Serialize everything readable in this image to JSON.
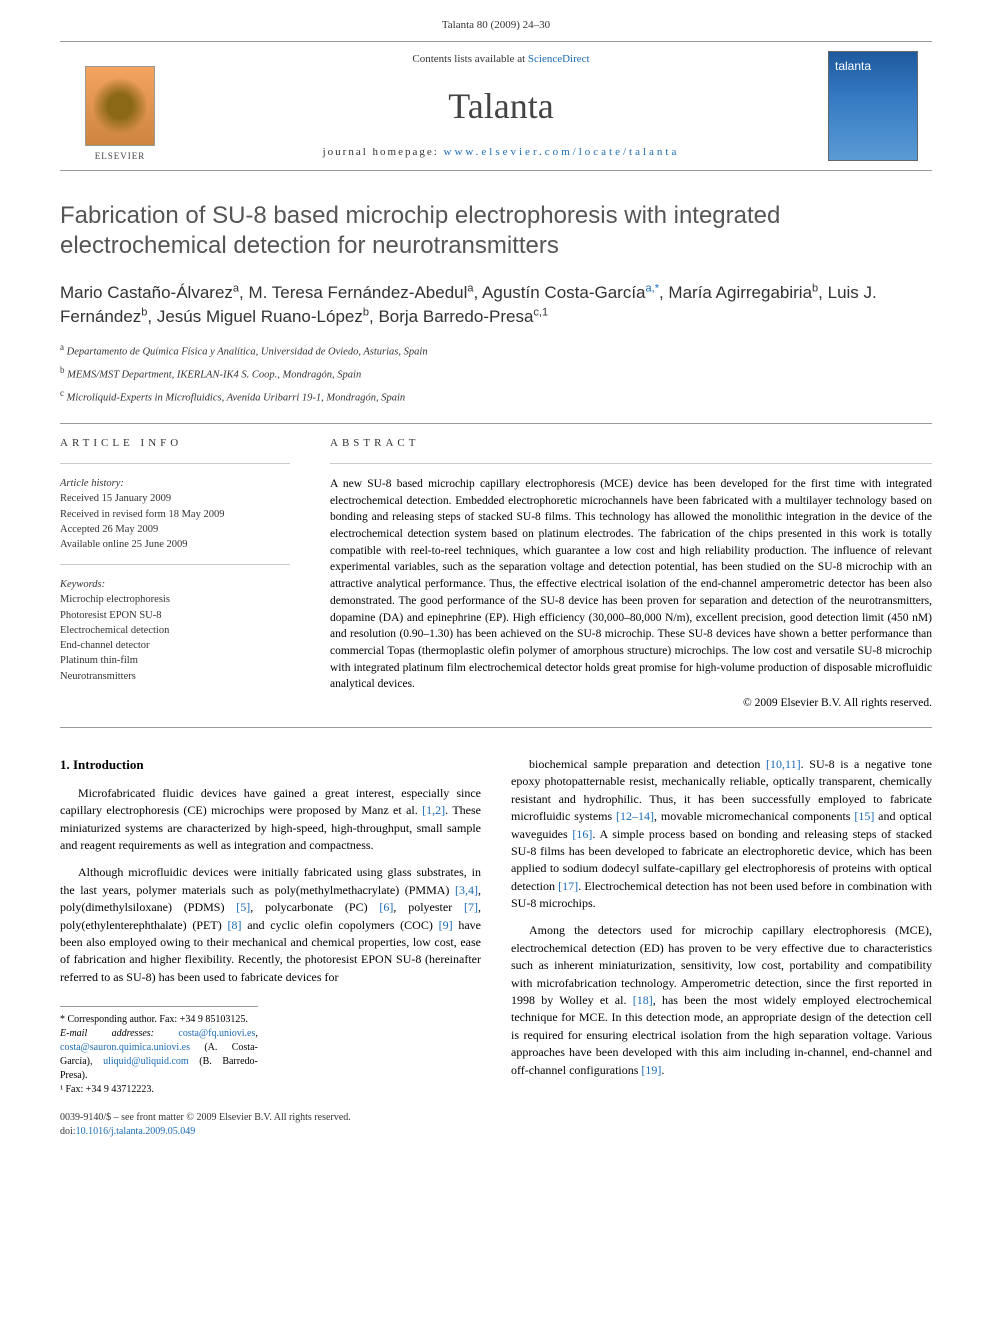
{
  "page_header": "Talanta 80 (2009) 24–30",
  "banner": {
    "contents_prefix": "Contents lists available at ",
    "contents_link": "ScienceDirect",
    "journal_name": "Talanta",
    "homepage_prefix": "journal homepage: ",
    "homepage_link": "www.elsevier.com/locate/talanta",
    "publisher": "ELSEVIER",
    "cover_label": "talanta"
  },
  "article": {
    "title": "Fabrication of SU-8 based microchip electrophoresis with integrated electrochemical detection for neurotransmitters",
    "authors_html": "Mario Castaño-Álvarez<sup class='sup-plain'>a</sup>, M. Teresa Fernández-Abedul<sup class='sup-plain'>a</sup>, Agustín Costa-García<sup>a,</sup><sup>*</sup>, María Agirregabiria<sup class='sup-plain'>b</sup>, Luis J. Fernández<sup class='sup-plain'>b</sup>, Jesús Miguel Ruano-López<sup class='sup-plain'>b</sup>, Borja Barredo-Presa<sup class='sup-plain'>c,1</sup>",
    "affiliations": [
      {
        "sup": "a",
        "text": "Departamento de Química Física y Analítica, Universidad de Oviedo, Asturias, Spain"
      },
      {
        "sup": "b",
        "text": "MEMS/MST Department, IKERLAN-IK4 S. Coop., Mondragón, Spain"
      },
      {
        "sup": "c",
        "text": "Microliquid-Experts in Microfluidics, Avenida Uribarri 19-1, Mondragón, Spain"
      }
    ]
  },
  "info": {
    "label": "article info",
    "history_head": "Article history:",
    "history": [
      "Received 15 January 2009",
      "Received in revised form 18 May 2009",
      "Accepted 26 May 2009",
      "Available online 25 June 2009"
    ],
    "keywords_head": "Keywords:",
    "keywords": [
      "Microchip electrophoresis",
      "Photoresist EPON SU-8",
      "Electrochemical detection",
      "End-channel detector",
      "Platinum thin-film",
      "Neurotransmitters"
    ]
  },
  "abstract": {
    "label": "abstract",
    "text": "A new SU-8 based microchip capillary electrophoresis (MCE) device has been developed for the first time with integrated electrochemical detection. Embedded electrophoretic microchannels have been fabricated with a multilayer technology based on bonding and releasing steps of stacked SU-8 films. This technology has allowed the monolithic integration in the device of the electrochemical detection system based on platinum electrodes. The fabrication of the chips presented in this work is totally compatible with reel-to-reel techniques, which guarantee a low cost and high reliability production. The influence of relevant experimental variables, such as the separation voltage and detection potential, has been studied on the SU-8 microchip with an attractive analytical performance. Thus, the effective electrical isolation of the end-channel amperometric detector has been also demonstrated. The good performance of the SU-8 device has been proven for separation and detection of the neurotransmitters, dopamine (DA) and epinephrine (EP). High efficiency (30,000–80,000 N/m), excellent precision, good detection limit (450 nM) and resolution (0.90–1.30) has been achieved on the SU-8 microchip. These SU-8 devices have shown a better performance than commercial Topas (thermoplastic olefin polymer of amorphous structure) microchips. The low cost and versatile SU-8 microchip with integrated platinum film electrochemical detector holds great promise for high-volume production of disposable microfluidic analytical devices.",
    "copyright": "© 2009 Elsevier B.V. All rights reserved."
  },
  "body": {
    "section_heading": "1. Introduction",
    "left_paragraphs": [
      "Microfabricated fluidic devices have gained a great interest, especially since capillary electrophoresis (CE) microchips were proposed by Manz et al. <a class='ref-link' href='#'>[1,2]</a>. These miniaturized systems are characterized by high-speed, high-throughput, small sample and reagent requirements as well as integration and compactness.",
      "Although microfluidic devices were initially fabricated using glass substrates, in the last years, polymer materials such as poly(methylmethacrylate) (PMMA) <a class='ref-link' href='#'>[3,4]</a>, poly(dimethylsiloxane) (PDMS) <a class='ref-link' href='#'>[5]</a>, polycarbonate (PC) <a class='ref-link' href='#'>[6]</a>, polyester <a class='ref-link' href='#'>[7]</a>, poly(ethylenterephthalate) (PET) <a class='ref-link' href='#'>[8]</a> and cyclic olefin copolymers (COC) <a class='ref-link' href='#'>[9]</a> have been also employed owing to their mechanical and chemical properties, low cost, ease of fabrication and higher flexibility. Recently, the photoresist EPON SU-8 (hereinafter referred to as SU-8) has been used to fabricate devices for"
    ],
    "right_paragraphs": [
      "biochemical sample preparation and detection <a class='ref-link' href='#'>[10,11]</a>. SU-8 is a negative tone epoxy photopatternable resist, mechanically reliable, optically transparent, chemically resistant and hydrophilic. Thus, it has been successfully employed to fabricate microfluidic systems <a class='ref-link' href='#'>[12–14]</a>, movable micromechanical components <a class='ref-link' href='#'>[15]</a> and optical waveguides <a class='ref-link' href='#'>[16]</a>. A simple process based on bonding and releasing steps of stacked SU-8 films has been developed to fabricate an electrophoretic device, which has been applied to sodium dodecyl sulfate-capillary gel electrophoresis of proteins with optical detection <a class='ref-link' href='#'>[17]</a>. Electrochemical detection has not been used before in combination with SU-8 microchips.",
      "Among the detectors used for microchip capillary electrophoresis (MCE), electrochemical detection (ED) has proven to be very effective due to characteristics such as inherent miniaturization, sensitivity, low cost, portability and compatibility with microfabrication technology. Amperometric detection, since the first reported in 1998 by Wolley et al. <a class='ref-link' href='#'>[18]</a>, has been the most widely employed electrochemical technique for MCE. In this detection mode, an appropriate design of the detection cell is required for ensuring electrical isolation from the high separation voltage. Various approaches have been developed with this aim including in-channel, end-channel and off-channel configurations <a class='ref-link' href='#'>[19]</a>."
    ]
  },
  "footnotes": {
    "corr": "* Corresponding author. Fax: +34 9 85103125.",
    "email_label": "E-mail addresses: ",
    "emails": [
      {
        "addr": "costa@fq.uniovi.es",
        "who": ""
      },
      {
        "addr": "costa@sauron.quimica.uniovi.es",
        "who": " (A. Costa-García), "
      },
      {
        "addr": "uliquid@uliquid.com",
        "who": " (B. Barredo-Presa)."
      }
    ],
    "extra": "¹ Fax: +34 9 43712223."
  },
  "footer": {
    "line1": "0039-9140/$ – see front matter © 2009 Elsevier B.V. All rights reserved.",
    "doi_label": "doi:",
    "doi": "10.1016/j.talanta.2009.05.049"
  }
}
